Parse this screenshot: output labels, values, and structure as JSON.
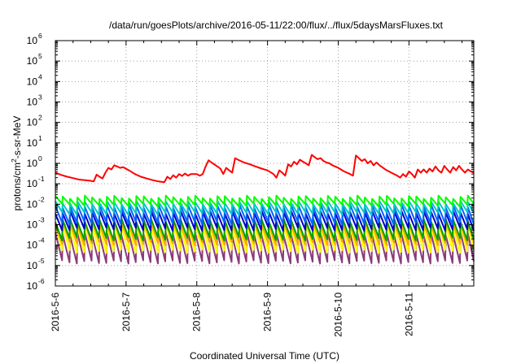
{
  "chart_data": {
    "type": "line",
    "title": "/data/run/goesPlots/archive/2016-05-11/22:00/flux/../flux/5daysMarsFluxes.txt",
    "xlabel": "Coordinated Universal Time (UTC)",
    "ylabel": {
      "prefix": "protons/cm",
      "exp": "2",
      "suffix": "-s-sr-MeV"
    },
    "xlim": [
      "2016-05-06 00:00",
      "2016-05-11 22:00"
    ],
    "ylim": [
      1e-06,
      1000000.0
    ],
    "y_scale": "log",
    "grid": true,
    "legend": "none",
    "x_ticks": [
      "2016-5-6",
      "2016-5-7",
      "2016-5-8",
      "2016-5-9",
      "2016-5-10",
      "2016-5-11"
    ],
    "y_ticks": [
      {
        "base": "10",
        "exp": "6"
      },
      {
        "base": "10",
        "exp": "5"
      },
      {
        "base": "10",
        "exp": "4"
      },
      {
        "base": "10",
        "exp": "3"
      },
      {
        "base": "10",
        "exp": "2"
      },
      {
        "base": "10",
        "exp": "1"
      },
      {
        "base": "10",
        "exp": "0"
      },
      {
        "base": "10",
        "exp": "-1"
      },
      {
        "base": "10",
        "exp": "-2"
      },
      {
        "base": "10",
        "exp": "-3"
      },
      {
        "base": "10",
        "exp": "-4"
      },
      {
        "base": "10",
        "exp": "-5"
      },
      {
        "base": "10",
        "exp": "-6"
      }
    ],
    "series": [
      {
        "color": "#ff0000",
        "points": [
          [
            "2016-05-06 00:00",
            0.35
          ],
          [
            "2016-05-06 02:00",
            0.27
          ],
          [
            "2016-05-06 04:00",
            0.22
          ],
          [
            "2016-05-06 06:00",
            0.19
          ],
          [
            "2016-05-06 08:00",
            0.16
          ],
          [
            "2016-05-06 10:00",
            0.15
          ],
          [
            "2016-05-06 12:00",
            0.14
          ],
          [
            "2016-05-06 13:00",
            0.13
          ],
          [
            "2016-05-06 14:00",
            0.28
          ],
          [
            "2016-05-06 15:00",
            0.22
          ],
          [
            "2016-05-06 16:00",
            0.18
          ],
          [
            "2016-05-06 17:00",
            0.35
          ],
          [
            "2016-05-06 18:00",
            0.6
          ],
          [
            "2016-05-06 19:00",
            0.5
          ],
          [
            "2016-05-06 20:00",
            0.8
          ],
          [
            "2016-05-06 21:00",
            0.7
          ],
          [
            "2016-05-06 22:00",
            0.6
          ],
          [
            "2016-05-06 23:00",
            0.65
          ],
          [
            "2016-05-07 01:00",
            0.45
          ],
          [
            "2016-05-07 03:00",
            0.3
          ],
          [
            "2016-05-07 05:00",
            0.22
          ],
          [
            "2016-05-07 07:00",
            0.18
          ],
          [
            "2016-05-07 09:00",
            0.15
          ],
          [
            "2016-05-07 11:00",
            0.13
          ],
          [
            "2016-05-07 13:00",
            0.12
          ],
          [
            "2016-05-07 14:00",
            0.22
          ],
          [
            "2016-05-07 15:00",
            0.17
          ],
          [
            "2016-05-07 16:00",
            0.26
          ],
          [
            "2016-05-07 17:00",
            0.2
          ],
          [
            "2016-05-07 18:00",
            0.3
          ],
          [
            "2016-05-07 19:00",
            0.24
          ],
          [
            "2016-05-07 20:00",
            0.32
          ],
          [
            "2016-05-07 21:00",
            0.25
          ],
          [
            "2016-05-07 22:00",
            0.3
          ],
          [
            "2016-05-08 00:00",
            0.3
          ],
          [
            "2016-05-08 01:00",
            0.25
          ],
          [
            "2016-05-08 02:00",
            0.3
          ],
          [
            "2016-05-08 03:00",
            0.7
          ],
          [
            "2016-05-08 04:00",
            1.4
          ],
          [
            "2016-05-08 05:00",
            1.1
          ],
          [
            "2016-05-08 07:00",
            0.7
          ],
          [
            "2016-05-08 08:00",
            0.55
          ],
          [
            "2016-05-08 09:00",
            0.3
          ],
          [
            "2016-05-08 10:00",
            0.6
          ],
          [
            "2016-05-08 11:00",
            0.45
          ],
          [
            "2016-05-08 12:00",
            0.35
          ],
          [
            "2016-05-08 13:00",
            1.8
          ],
          [
            "2016-05-08 14:00",
            1.5
          ],
          [
            "2016-05-08 16:00",
            1.1
          ],
          [
            "2016-05-08 18:00",
            0.9
          ],
          [
            "2016-05-08 20:00",
            0.7
          ],
          [
            "2016-05-08 22:00",
            0.55
          ],
          [
            "2016-05-09 00:00",
            0.45
          ],
          [
            "2016-05-09 02:00",
            0.3
          ],
          [
            "2016-05-09 03:00",
            0.2
          ],
          [
            "2016-05-09 04:00",
            0.45
          ],
          [
            "2016-05-09 05:00",
            0.35
          ],
          [
            "2016-05-09 06:00",
            0.25
          ],
          [
            "2016-05-09 07:00",
            0.9
          ],
          [
            "2016-05-09 08:00",
            0.7
          ],
          [
            "2016-05-09 09:00",
            1.2
          ],
          [
            "2016-05-09 10:00",
            0.9
          ],
          [
            "2016-05-09 11:00",
            1.5
          ],
          [
            "2016-05-09 12:00",
            1.2
          ],
          [
            "2016-05-09 13:00",
            1.0
          ],
          [
            "2016-05-09 14:00",
            0.8
          ],
          [
            "2016-05-09 15:00",
            2.6
          ],
          [
            "2016-05-09 16:00",
            2.0
          ],
          [
            "2016-05-09 17:00",
            1.6
          ],
          [
            "2016-05-09 18:00",
            1.8
          ],
          [
            "2016-05-09 19:00",
            1.3
          ],
          [
            "2016-05-09 20:00",
            1.1
          ],
          [
            "2016-05-09 21:00",
            1.0
          ],
          [
            "2016-05-09 22:00",
            0.8
          ],
          [
            "2016-05-10 00:00",
            0.6
          ],
          [
            "2016-05-10 02:00",
            0.4
          ],
          [
            "2016-05-10 04:00",
            0.3
          ],
          [
            "2016-05-10 05:00",
            0.25
          ],
          [
            "2016-05-10 06:00",
            2.4
          ],
          [
            "2016-05-10 07:00",
            1.8
          ],
          [
            "2016-05-10 08:00",
            1.3
          ],
          [
            "2016-05-10 09:00",
            1.6
          ],
          [
            "2016-05-10 10:00",
            1.0
          ],
          [
            "2016-05-10 11:00",
            1.3
          ],
          [
            "2016-05-10 12:00",
            0.8
          ],
          [
            "2016-05-10 13:00",
            1.1
          ],
          [
            "2016-05-10 14:00",
            0.8
          ],
          [
            "2016-05-10 16:00",
            0.5
          ],
          [
            "2016-05-10 18:00",
            0.35
          ],
          [
            "2016-05-10 20:00",
            0.25
          ],
          [
            "2016-05-10 21:00",
            0.2
          ],
          [
            "2016-05-10 22:00",
            0.3
          ],
          [
            "2016-05-10 23:00",
            0.22
          ],
          [
            "2016-05-11 00:00",
            0.4
          ],
          [
            "2016-05-11 01:00",
            0.3
          ],
          [
            "2016-05-11 02:00",
            0.2
          ],
          [
            "2016-05-11 03:00",
            0.5
          ],
          [
            "2016-05-11 04:00",
            0.35
          ],
          [
            "2016-05-11 05:00",
            0.5
          ],
          [
            "2016-05-11 06:00",
            0.35
          ],
          [
            "2016-05-11 07:00",
            0.55
          ],
          [
            "2016-05-11 08:00",
            0.4
          ],
          [
            "2016-05-11 09:00",
            0.7
          ],
          [
            "2016-05-11 10:00",
            0.45
          ],
          [
            "2016-05-11 11:00",
            0.35
          ],
          [
            "2016-05-11 12:00",
            0.75
          ],
          [
            "2016-05-11 13:00",
            0.5
          ],
          [
            "2016-05-11 14:00",
            0.35
          ],
          [
            "2016-05-11 15:00",
            0.65
          ],
          [
            "2016-05-11 16:00",
            0.45
          ],
          [
            "2016-05-11 17:00",
            0.75
          ],
          [
            "2016-05-11 18:00",
            0.5
          ],
          [
            "2016-05-11 19:00",
            0.35
          ],
          [
            "2016-05-11 20:00",
            0.5
          ],
          [
            "2016-05-11 21:00",
            0.4
          ],
          [
            "2016-05-11 22:00",
            0.35
          ]
        ]
      },
      {
        "color": "#00ff00",
        "sawtooth": {
          "period_hours": 2.5,
          "peak": 0.022,
          "trough": 0.009
        }
      },
      {
        "color": "#00c8c8",
        "sawtooth": {
          "period_hours": 2.5,
          "peak": 0.012,
          "trough": 0.0035
        }
      },
      {
        "color": "#0064ff",
        "sawtooth": {
          "period_hours": 2.5,
          "peak": 0.008,
          "trough": 0.0012
        }
      },
      {
        "color": "#0000c8",
        "sawtooth": {
          "period_hours": 2.5,
          "peak": 0.004,
          "trough": 0.0006
        }
      },
      {
        "color": "#00a000",
        "sawtooth": {
          "period_hours": 2.5,
          "peak": 0.0016,
          "trough": 0.0002
        }
      },
      {
        "color": "#ffaa00",
        "sawtooth": {
          "period_hours": 2.5,
          "peak": 0.0012,
          "trough": 0.00012
        }
      },
      {
        "color": "#ffff00",
        "sawtooth": {
          "period_hours": 2.5,
          "peak": 0.0009,
          "trough": 5e-05
        }
      },
      {
        "color": "#8b3a7a",
        "sawtooth": {
          "period_hours": 2.5,
          "peak": 0.00035,
          "trough": 1.5e-05
        }
      }
    ]
  }
}
